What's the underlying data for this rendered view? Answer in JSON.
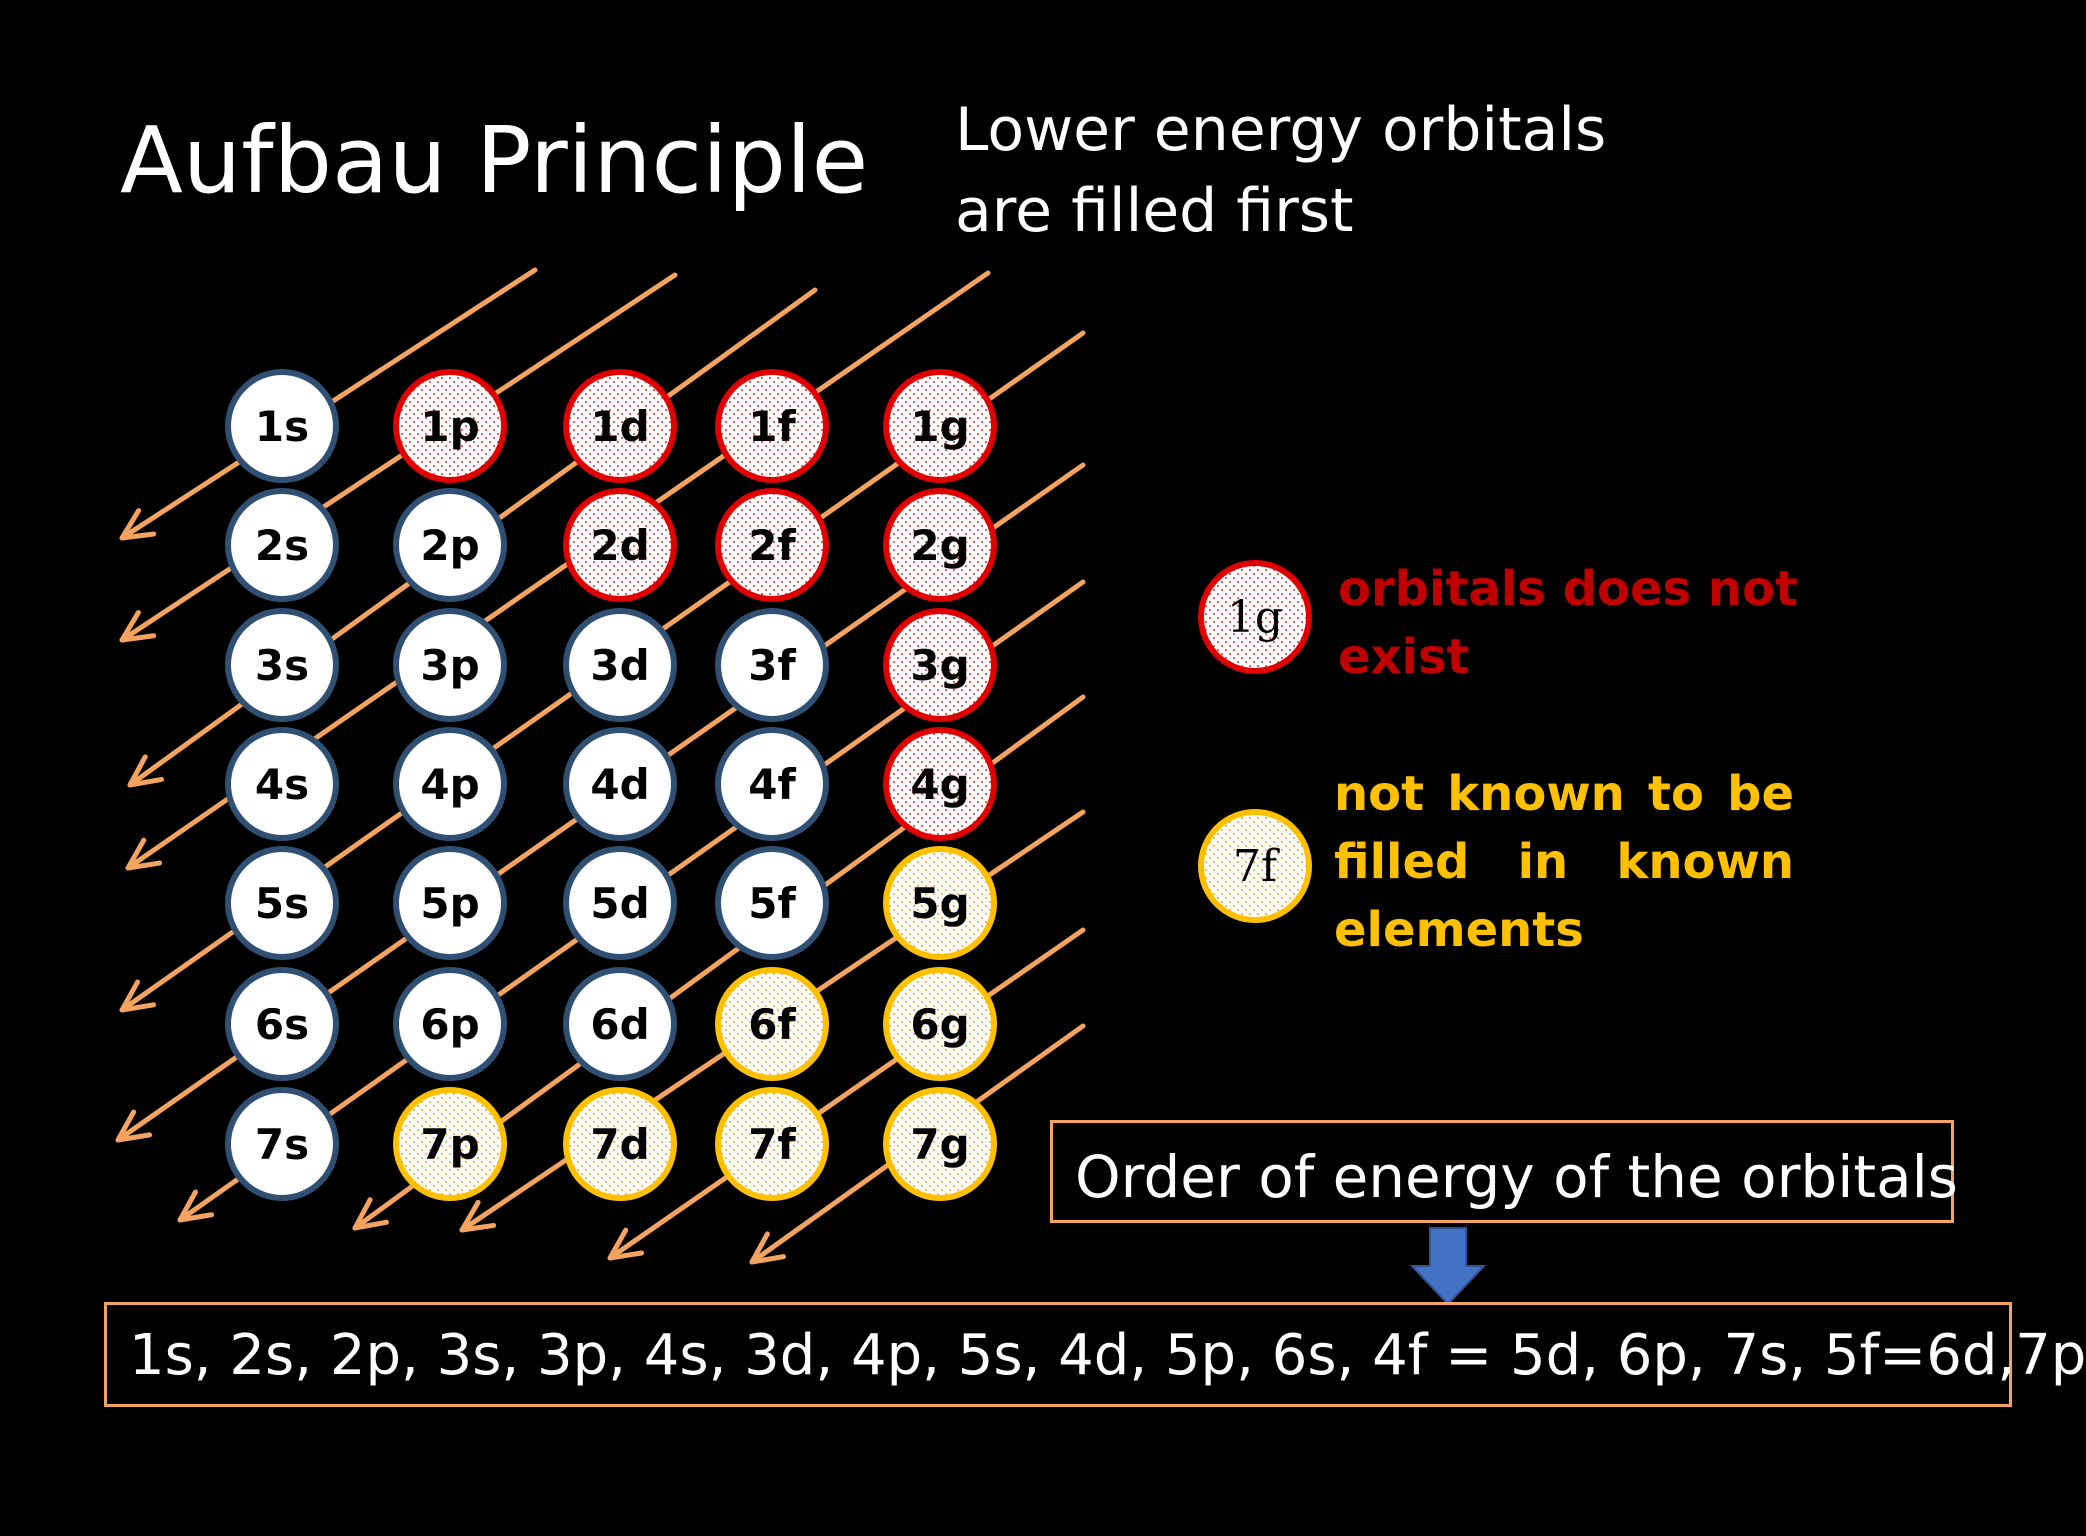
{
  "title": "Aufbau Principle",
  "subtitle": [
    "Lower energy orbitals",
    "are filled first"
  ],
  "colors": {
    "arrow": "#f4a460",
    "exists_border": "#2f4f73",
    "nonexistent_border": "#e00000",
    "unfilled_border": "#ffc000",
    "legend_red_text": "#c00000",
    "legend_yellow_text": "#ffc000"
  },
  "orbitals": {
    "rows": [
      [
        {
          "label": "1s",
          "status": "exists"
        },
        {
          "label": "1p",
          "status": "nonexistent"
        },
        {
          "label": "1d",
          "status": "nonexistent"
        },
        {
          "label": "1f",
          "status": "nonexistent"
        },
        {
          "label": "1g",
          "status": "nonexistent"
        }
      ],
      [
        {
          "label": "2s",
          "status": "exists"
        },
        {
          "label": "2p",
          "status": "exists"
        },
        {
          "label": "2d",
          "status": "nonexistent"
        },
        {
          "label": "2f",
          "status": "nonexistent"
        },
        {
          "label": "2g",
          "status": "nonexistent"
        }
      ],
      [
        {
          "label": "3s",
          "status": "exists"
        },
        {
          "label": "3p",
          "status": "exists"
        },
        {
          "label": "3d",
          "status": "exists"
        },
        {
          "label": "3f",
          "status": "exists"
        },
        {
          "label": "3g",
          "status": "nonexistent"
        }
      ],
      [
        {
          "label": "4s",
          "status": "exists"
        },
        {
          "label": "4p",
          "status": "exists"
        },
        {
          "label": "4d",
          "status": "exists"
        },
        {
          "label": "4f",
          "status": "exists"
        },
        {
          "label": "4g",
          "status": "nonexistent"
        }
      ],
      [
        {
          "label": "5s",
          "status": "exists"
        },
        {
          "label": "5p",
          "status": "exists"
        },
        {
          "label": "5d",
          "status": "exists"
        },
        {
          "label": "5f",
          "status": "exists"
        },
        {
          "label": "5g",
          "status": "unfilled"
        }
      ],
      [
        {
          "label": "6s",
          "status": "exists"
        },
        {
          "label": "6p",
          "status": "exists"
        },
        {
          "label": "6d",
          "status": "exists"
        },
        {
          "label": "6f",
          "status": "unfilled"
        },
        {
          "label": "6g",
          "status": "unfilled"
        }
      ],
      [
        {
          "label": "7s",
          "status": "exists"
        },
        {
          "label": "7p",
          "status": "unfilled"
        },
        {
          "label": "7d",
          "status": "unfilled"
        },
        {
          "label": "7f",
          "status": "unfilled"
        },
        {
          "label": "7g",
          "status": "unfilled"
        }
      ]
    ]
  },
  "legend": {
    "red": {
      "circle_label": "1g",
      "text": "orbitals does not exist"
    },
    "yellow": {
      "circle_label": "7f",
      "text": "not known to be filled in known elements"
    }
  },
  "order_box_label": "Order of energy of the orbitals",
  "sequence_text": "1s, 2s, 2p, 3s, 3p, 4s, 3d, 4p, 5s, 4d, 5p, 6s, 4f = 5d, 6p, 7s, 5f=6d,7p"
}
